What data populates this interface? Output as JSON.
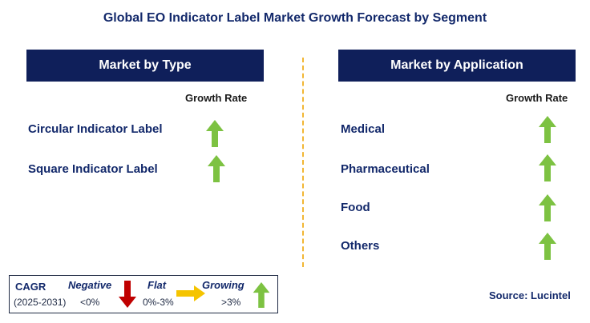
{
  "title": "Global EO Indicator Label Market Growth Forecast by Segment",
  "left": {
    "header": "Market by Type",
    "growth_header": "Growth Rate",
    "items": [
      {
        "label": "Circular Indicator Label",
        "trend": "growing"
      },
      {
        "label": "Square Indicator Label",
        "trend": "growing"
      }
    ]
  },
  "right": {
    "header": "Market by Application",
    "growth_header": "Growth Rate",
    "items": [
      {
        "label": "Medical",
        "trend": "growing"
      },
      {
        "label": "Pharmaceutical",
        "trend": "growing"
      },
      {
        "label": "Food",
        "trend": "growing"
      },
      {
        "label": "Others",
        "trend": "growing"
      }
    ]
  },
  "legend": {
    "cagr": "CAGR",
    "period": "(2025-2031)",
    "negative_label": "Negative",
    "negative_range": "<0%",
    "flat_label": "Flat",
    "flat_range": "0%-3%",
    "growing_label": "Growing",
    "growing_range": ">3%"
  },
  "source": "Source: Lucintel",
  "colors": {
    "header_bg": "#0f1f5a",
    "up_arrow": "#7dc242",
    "down_arrow": "#c00000",
    "flat_arrow": "#f5c400",
    "divider": "#f2b634"
  }
}
